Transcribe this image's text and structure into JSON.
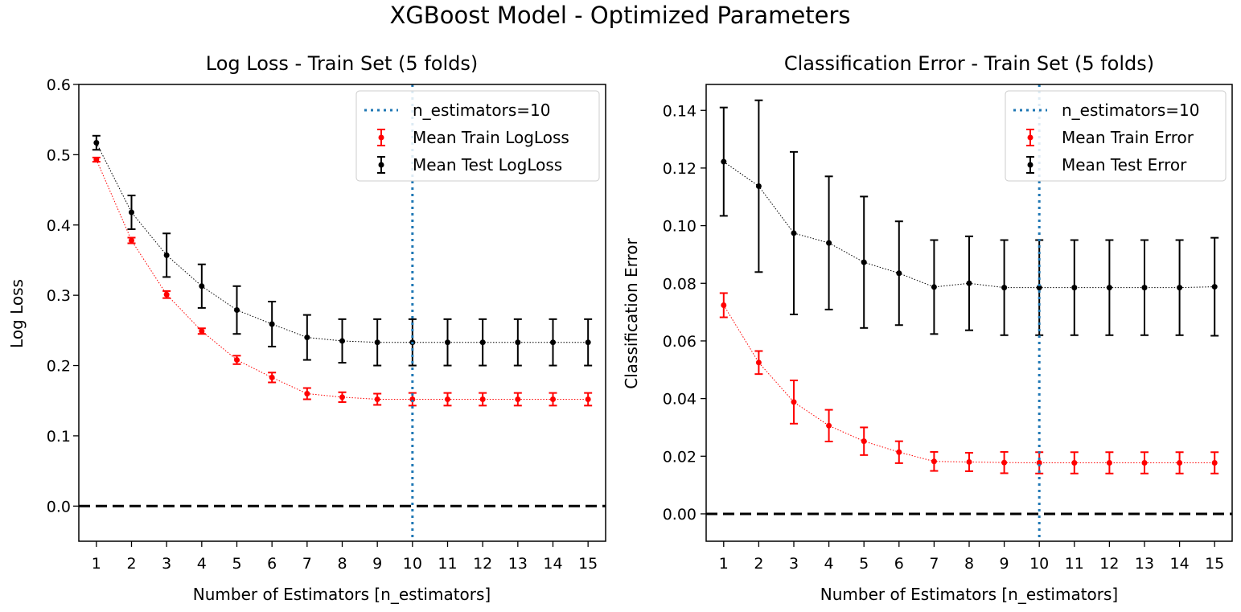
{
  "suptitle": "XGBoost Model - Optimized Parameters",
  "colors": {
    "train": "#ff0000",
    "test": "#000000",
    "vline": "#1f77b4",
    "zero": "#000000"
  },
  "chart_data": [
    {
      "type": "line",
      "title": "Log Loss - Train Set (5 folds)",
      "xlabel": "Number of Estimators [n_estimators]",
      "ylabel": "Log Loss",
      "x": [
        1,
        2,
        3,
        4,
        5,
        6,
        7,
        8,
        9,
        10,
        11,
        12,
        13,
        14,
        15
      ],
      "xlim": [
        0.5,
        15.5
      ],
      "ylim": [
        -0.05,
        0.6
      ],
      "yticks": [
        0.0,
        0.1,
        0.2,
        0.3,
        0.4,
        0.5,
        0.6
      ],
      "ytick_labels": [
        "0.0",
        "0.1",
        "0.2",
        "0.3",
        "0.4",
        "0.5",
        "0.6"
      ],
      "vline": {
        "x": 10,
        "label": "n_estimators=10"
      },
      "hline": 0,
      "grid": false,
      "legend_position": "top-right",
      "series": [
        {
          "name": "Mean Train LogLoss",
          "color_key": "train",
          "values": [
            0.493,
            0.378,
            0.301,
            0.249,
            0.208,
            0.183,
            0.16,
            0.155,
            0.152,
            0.152,
            0.152,
            0.152,
            0.152,
            0.152,
            0.152
          ],
          "errors": [
            0.003,
            0.004,
            0.005,
            0.004,
            0.006,
            0.007,
            0.008,
            0.007,
            0.008,
            0.009,
            0.009,
            0.009,
            0.009,
            0.009,
            0.009
          ]
        },
        {
          "name": "Mean Test LogLoss",
          "color_key": "test",
          "values": [
            0.517,
            0.418,
            0.357,
            0.313,
            0.279,
            0.259,
            0.24,
            0.235,
            0.233,
            0.233,
            0.233,
            0.233,
            0.233,
            0.233,
            0.233
          ],
          "errors": [
            0.01,
            0.024,
            0.031,
            0.031,
            0.034,
            0.032,
            0.032,
            0.031,
            0.033,
            0.033,
            0.033,
            0.033,
            0.033,
            0.033,
            0.033
          ]
        }
      ]
    },
    {
      "type": "line",
      "title": "Classification Error - Train Set (5 folds)",
      "xlabel": "Number of Estimators [n_estimators]",
      "ylabel": "Classification Error",
      "x": [
        1,
        2,
        3,
        4,
        5,
        6,
        7,
        8,
        9,
        10,
        11,
        12,
        13,
        14,
        15
      ],
      "xlim": [
        0.5,
        15.5
      ],
      "ylim": [
        -0.0095,
        0.149
      ],
      "yticks": [
        0.0,
        0.02,
        0.04,
        0.06,
        0.08,
        0.1,
        0.12,
        0.14
      ],
      "ytick_labels": [
        "0.00",
        "0.02",
        "0.04",
        "0.06",
        "0.08",
        "0.10",
        "0.12",
        "0.14"
      ],
      "vline": {
        "x": 10,
        "label": "n_estimators=10"
      },
      "hline": 0,
      "grid": false,
      "legend_position": "top-right",
      "series": [
        {
          "name": "Mean Train Error",
          "color_key": "train",
          "values": [
            0.0724,
            0.0525,
            0.0388,
            0.0306,
            0.0252,
            0.0214,
            0.0182,
            0.018,
            0.0178,
            0.0177,
            0.0177,
            0.0177,
            0.0177,
            0.0177,
            0.0177
          ],
          "errors": [
            0.0042,
            0.004,
            0.0075,
            0.0055,
            0.0048,
            0.0038,
            0.0033,
            0.0032,
            0.0037,
            0.0037,
            0.0037,
            0.0037,
            0.0037,
            0.0037,
            0.0037
          ]
        },
        {
          "name": "Mean Test Error",
          "color_key": "test",
          "values": [
            0.1222,
            0.1137,
            0.0974,
            0.094,
            0.0873,
            0.0835,
            0.0787,
            0.08,
            0.0785,
            0.0785,
            0.0785,
            0.0785,
            0.0785,
            0.0785,
            0.0788
          ],
          "errors": [
            0.0188,
            0.0298,
            0.0282,
            0.0231,
            0.0228,
            0.018,
            0.0163,
            0.0163,
            0.0165,
            0.0165,
            0.0165,
            0.0165,
            0.0165,
            0.0165,
            0.017
          ]
        }
      ]
    }
  ]
}
